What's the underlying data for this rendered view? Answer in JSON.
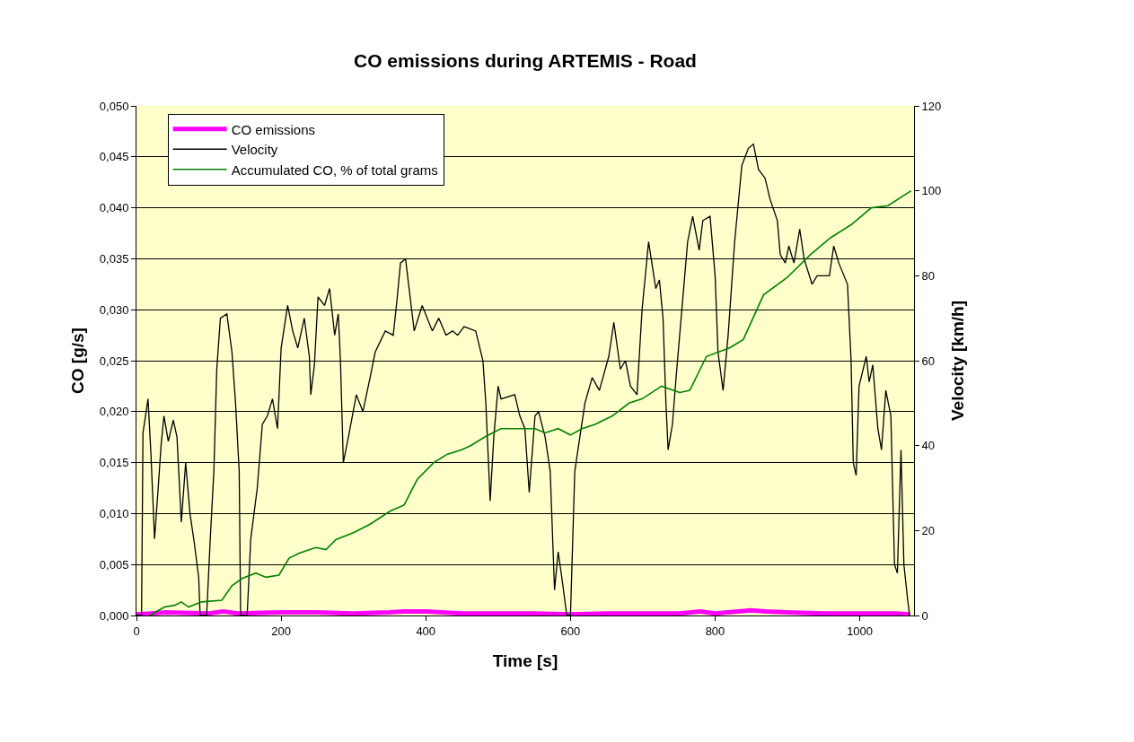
{
  "chart_data": {
    "type": "line",
    "title": "CO emissions during ARTEMIS - Road",
    "xlabel": "Time [s]",
    "ylabel": "CO [g/s]",
    "y2label": "Velocity [km/h]",
    "xlim": [
      0,
      1075
    ],
    "xticks": [
      0,
      200,
      400,
      600,
      800,
      1000
    ],
    "ylim": [
      0,
      0.05
    ],
    "yticks": [
      {
        "value": 0,
        "label": "0,000"
      },
      {
        "value": 0.005,
        "label": "0,005"
      },
      {
        "value": 0.01,
        "label": "0,010"
      },
      {
        "value": 0.015,
        "label": "0,015"
      },
      {
        "value": 0.02,
        "label": "0,020"
      },
      {
        "value": 0.025,
        "label": "0,025"
      },
      {
        "value": 0.03,
        "label": "0,030"
      },
      {
        "value": 0.035,
        "label": "0,035"
      },
      {
        "value": 0.04,
        "label": "0,040"
      },
      {
        "value": 0.045,
        "label": "0,045"
      },
      {
        "value": 0.05,
        "label": "0,050"
      }
    ],
    "y2lim": [
      0,
      120
    ],
    "y2ticks": [
      0,
      20,
      40,
      60,
      80,
      100,
      120
    ],
    "grid": "y",
    "legend": "top left",
    "marker": "none",
    "line_style": "solid",
    "series": [
      {
        "name": "CO emissions",
        "color": "#ff00ff",
        "x": [
          0,
          20,
          40,
          100,
          120,
          140,
          200,
          250,
          300,
          350,
          370,
          400,
          450,
          500,
          550,
          600,
          650,
          700,
          750,
          780,
          800,
          850,
          870,
          900,
          950,
          1000,
          1050,
          1069
        ],
        "values": [
          0.0001,
          0.0002,
          0.0003,
          0.0002,
          0.0004,
          0.0002,
          0.0003,
          0.0003,
          0.0002,
          0.0003,
          0.0004,
          0.0004,
          0.0002,
          0.0002,
          0.0002,
          0.0001,
          0.0002,
          0.0002,
          0.0002,
          0.0004,
          0.0002,
          0.0005,
          0.0004,
          0.0003,
          0.0002,
          0.0002,
          0.0002,
          0.0001
        ]
      },
      {
        "name": "Velocity",
        "color": "#000000",
        "axis": "y2",
        "x": [
          0,
          7,
          9,
          16,
          20,
          25,
          30,
          34,
          38,
          44,
          51,
          56,
          62,
          68,
          74,
          80,
          86,
          88,
          97,
          102,
          107,
          111,
          116,
          125,
          132,
          137,
          142,
          144,
          153,
          158,
          167,
          174,
          181,
          188,
          195,
          200,
          209,
          216,
          223,
          232,
          239,
          241,
          246,
          251,
          260,
          267,
          274,
          279,
          282,
          286,
          293,
          304,
          313,
          323,
          330,
          344,
          355,
          360,
          365,
          372,
          379,
          384,
          395,
          409,
          418,
          428,
          437,
          444,
          453,
          469,
          479,
          483,
          489,
          494,
          500,
          504,
          523,
          530,
          537,
          543,
          551,
          556,
          565,
          572,
          578,
          583,
          588,
          595,
          600,
          606,
          613,
          620,
          630,
          640,
          653,
          660,
          669,
          676,
          683,
          692,
          699,
          708,
          718,
          723,
          728,
          732,
          735,
          741,
          746,
          753,
          762,
          769,
          778,
          783,
          793,
          800,
          804,
          811,
          818,
          827,
          837,
          846,
          853,
          860,
          869,
          876,
          886,
          890,
          897,
          902,
          909,
          917,
          923,
          934,
          941,
          958,
          964,
          971,
          983,
          988,
          991,
          995,
          999,
          1009,
          1013,
          1018,
          1025,
          1030,
          1036,
          1043,
          1048,
          1052,
          1057,
          1061,
          1066,
          1069
        ],
        "values": [
          0,
          0,
          43,
          51,
          38,
          18,
          30,
          40,
          47,
          41,
          46,
          42,
          22,
          36,
          24,
          17,
          9,
          0,
          0,
          18,
          34,
          58,
          70,
          71,
          62,
          50,
          34,
          0,
          0,
          18,
          30,
          45,
          47,
          51,
          44,
          63,
          73,
          67,
          63,
          70,
          61,
          52,
          59,
          75,
          73,
          77,
          66,
          71,
          60,
          36,
          42,
          52,
          48,
          56,
          62,
          67,
          66,
          74,
          83,
          84,
          74,
          67,
          73,
          67,
          70,
          66,
          67,
          66,
          68,
          67,
          60,
          50,
          27,
          42,
          54,
          51,
          52,
          47,
          44,
          29,
          47,
          48,
          42,
          34,
          6,
          15,
          9,
          0,
          0,
          34,
          42,
          50,
          56,
          53,
          61,
          69,
          58,
          60,
          54,
          52,
          72,
          88,
          77,
          79,
          70,
          50,
          39,
          45,
          56,
          70,
          88,
          94,
          86,
          93,
          94,
          80,
          62,
          53,
          66,
          88,
          106,
          110,
          111,
          105,
          103,
          98,
          93,
          85,
          83,
          87,
          83,
          91,
          84,
          78,
          80,
          80,
          87,
          83,
          78,
          60,
          36,
          33,
          54,
          61,
          55,
          59,
          44,
          39,
          53,
          47,
          12,
          10,
          39,
          12,
          4,
          0
        ]
      },
      {
        "name": "Accumulated CO, % of total grams",
        "color": "#008000",
        "axis": "y2",
        "x": [
          18,
          39,
          53,
          62,
          72,
          90,
          118,
          132,
          146,
          165,
          179,
          197,
          211,
          225,
          248,
          262,
          276,
          300,
          323,
          351,
          370,
          388,
          411,
          430,
          449,
          462,
          481,
          504,
          528,
          551,
          565,
          583,
          600,
          616,
          634,
          658,
          681,
          699,
          726,
          751,
          765,
          788,
          820,
          839,
          867,
          899,
          932,
          960,
          988,
          1016,
          1039,
          1071
        ],
        "values": [
          0,
          2,
          2.4,
          3.2,
          2,
          3.2,
          3.6,
          7,
          8.7,
          10,
          9,
          9.5,
          13.5,
          14.7,
          16,
          15.5,
          17.9,
          19.5,
          21.5,
          24.6,
          26,
          32,
          36,
          38,
          39,
          40,
          42,
          44,
          44,
          44,
          43,
          44,
          42.5,
          44,
          45,
          47,
          50,
          51,
          54,
          52.5,
          53,
          61,
          63,
          65,
          75.5,
          79.5,
          85,
          89,
          92,
          96,
          96.5,
          100
        ]
      }
    ]
  }
}
